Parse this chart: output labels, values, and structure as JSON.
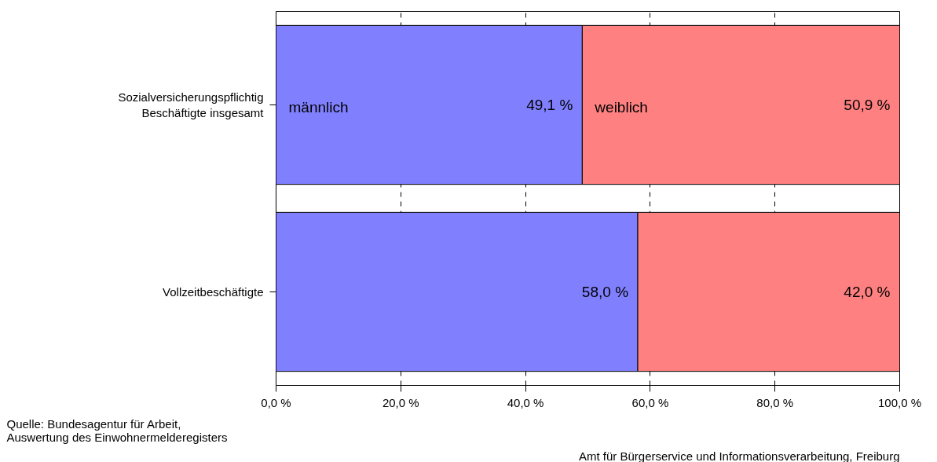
{
  "chart_data": {
    "type": "bar",
    "orientation": "horizontal",
    "stacked": true,
    "categories": [
      "Sozialversicherungspflichtig\nBeschäftigte insgesamt",
      "Vollzeitbeschäftigte"
    ],
    "series": [
      {
        "name": "männlich",
        "color": "#8080ff",
        "values": [
          49.1,
          58.0
        ],
        "value_labels": [
          "49,1 %",
          "58,0 %"
        ]
      },
      {
        "name": "weiblich",
        "color": "#ff8080",
        "values": [
          50.9,
          42.0
        ],
        "value_labels": [
          "50,9 %",
          "42,0 %"
        ]
      }
    ],
    "xlim": [
      0,
      100
    ],
    "xticks": [
      {
        "value": 0,
        "label": "0,0 %"
      },
      {
        "value": 20,
        "label": "20,0 %"
      },
      {
        "value": 40,
        "label": "40,0 %"
      },
      {
        "value": 60,
        "label": "60,0 %"
      },
      {
        "value": 80,
        "label": "80,0 %"
      },
      {
        "value": 100,
        "label": "100,0 %"
      }
    ],
    "grid": "x",
    "annotations": [
      "Quelle: Bundesagentur für Arbeit,\n        Auswertung des Einwohnermelderegisters",
      "Amt für Bürgerservice und Informationsverarbeitung, Freiburg"
    ]
  }
}
